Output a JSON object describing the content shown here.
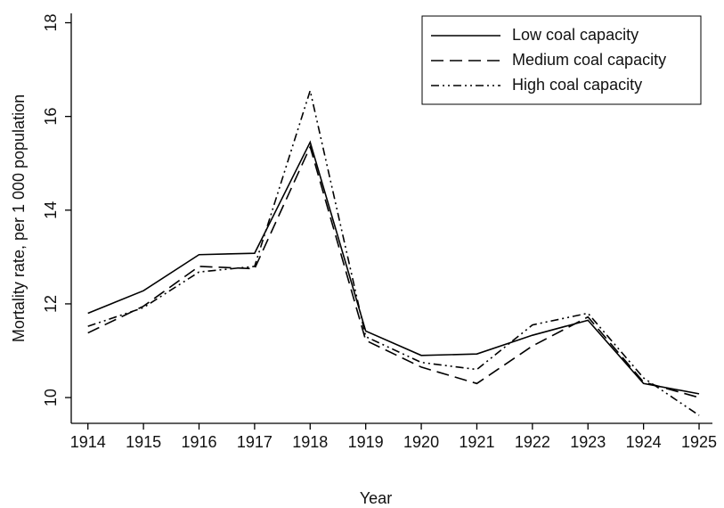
{
  "chart_data": {
    "type": "line",
    "x_label": "Year",
    "y_label": "Mortality rate, per 1 000 population",
    "x": [
      1914,
      1915,
      1916,
      1917,
      1918,
      1919,
      1920,
      1921,
      1922,
      1923,
      1924,
      1925
    ],
    "series": [
      {
        "name": "Low coal capacity",
        "color": "#000000",
        "dash": "solid",
        "values": [
          11.8,
          12.28,
          13.05,
          13.08,
          15.45,
          11.42,
          10.9,
          10.93,
          11.33,
          11.65,
          10.3,
          10.08
        ]
      },
      {
        "name": "Medium coal capacity",
        "color": "#000000",
        "dash": "dashed",
        "values": [
          11.38,
          11.95,
          12.8,
          12.75,
          15.35,
          11.22,
          10.65,
          10.3,
          11.1,
          11.72,
          10.33,
          10.0
        ]
      },
      {
        "name": "High coal capacity",
        "color": "#000000",
        "dash": "dashdotdot",
        "values": [
          11.52,
          11.92,
          12.68,
          12.8,
          16.55,
          11.3,
          10.75,
          10.6,
          11.55,
          11.8,
          10.42,
          9.62
        ]
      }
    ],
    "xlim": [
      1913.7,
      1925.24
    ],
    "xticks": [
      1914,
      1915,
      1916,
      1917,
      1918,
      1919,
      1920,
      1921,
      1922,
      1923,
      1924,
      1925
    ],
    "ylim": [
      9.45,
      18.2
    ],
    "yticks": [
      10,
      12,
      14,
      16,
      18
    ],
    "grid": false,
    "legend": "upper right"
  }
}
